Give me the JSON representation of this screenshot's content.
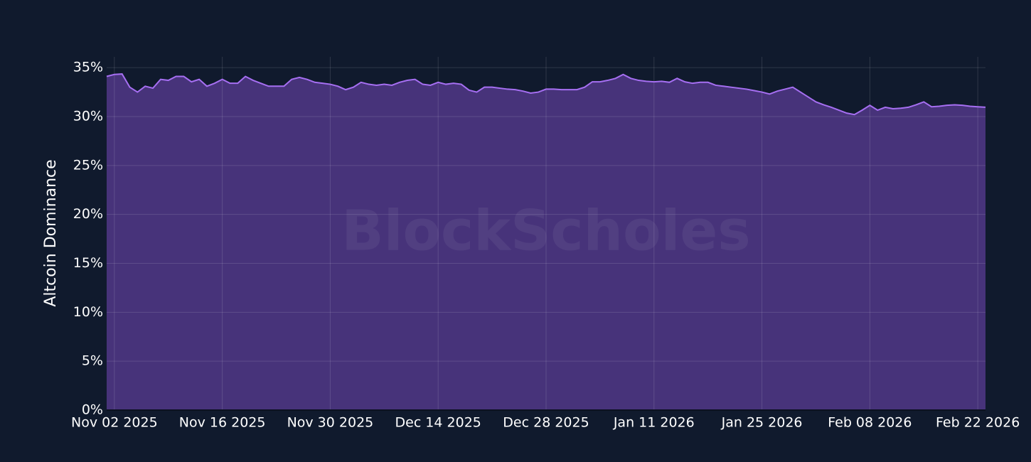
{
  "chart_data": {
    "type": "area",
    "y_label": "Altcoin Dominance",
    "watermark": "BlockScholes",
    "line_color": "#a66ff2",
    "fill_color": "#47337a",
    "grid": true,
    "xlim": [
      "2025-11-01",
      "2026-02-23"
    ],
    "ylim": [
      0,
      36.1
    ],
    "xticks": [
      {
        "value": "2025-11-02",
        "label": "Nov 02 2025"
      },
      {
        "value": "2025-11-16",
        "label": "Nov 16 2025"
      },
      {
        "value": "2025-11-30",
        "label": "Nov 30 2025"
      },
      {
        "value": "2025-12-14",
        "label": "Dec 14 2025"
      },
      {
        "value": "2025-12-28",
        "label": "Dec 28 2025"
      },
      {
        "value": "2026-01-11",
        "label": "Jan 11 2026"
      },
      {
        "value": "2026-01-25",
        "label": "Jan 25 2026"
      },
      {
        "value": "2026-02-08",
        "label": "Feb 08 2026"
      },
      {
        "value": "2026-02-22",
        "label": "Feb 22 2026"
      }
    ],
    "yticks": [
      {
        "value": 0,
        "label": "0%"
      },
      {
        "value": 5,
        "label": "5%"
      },
      {
        "value": 10,
        "label": "10%"
      },
      {
        "value": 15,
        "label": "15%"
      },
      {
        "value": 20,
        "label": "20%"
      },
      {
        "value": 25,
        "label": "25%"
      },
      {
        "value": 30,
        "label": "30%"
      },
      {
        "value": 35,
        "label": "35%"
      }
    ],
    "x": [
      "2025-11-01",
      "2025-11-02",
      "2025-11-03",
      "2025-11-04",
      "2025-11-05",
      "2025-11-06",
      "2025-11-07",
      "2025-11-08",
      "2025-11-09",
      "2025-11-10",
      "2025-11-11",
      "2025-11-12",
      "2025-11-13",
      "2025-11-14",
      "2025-11-15",
      "2025-11-16",
      "2025-11-17",
      "2025-11-18",
      "2025-11-19",
      "2025-11-20",
      "2025-11-21",
      "2025-11-22",
      "2025-11-23",
      "2025-11-24",
      "2025-11-25",
      "2025-11-26",
      "2025-11-27",
      "2025-11-28",
      "2025-11-29",
      "2025-11-30",
      "2025-12-01",
      "2025-12-02",
      "2025-12-03",
      "2025-12-04",
      "2025-12-05",
      "2025-12-06",
      "2025-12-07",
      "2025-12-08",
      "2025-12-09",
      "2025-12-10",
      "2025-12-11",
      "2025-12-12",
      "2025-12-13",
      "2025-12-14",
      "2025-12-15",
      "2025-12-16",
      "2025-12-17",
      "2025-12-18",
      "2025-12-19",
      "2025-12-20",
      "2025-12-21",
      "2025-12-22",
      "2025-12-23",
      "2025-12-24",
      "2025-12-25",
      "2025-12-26",
      "2025-12-27",
      "2025-12-28",
      "2025-12-29",
      "2025-12-30",
      "2025-12-31",
      "2026-01-01",
      "2026-01-02",
      "2026-01-03",
      "2026-01-04",
      "2026-01-05",
      "2026-01-06",
      "2026-01-07",
      "2026-01-08",
      "2026-01-09",
      "2026-01-10",
      "2026-01-11",
      "2026-01-12",
      "2026-01-13",
      "2026-01-14",
      "2026-01-15",
      "2026-01-16",
      "2026-01-17",
      "2026-01-18",
      "2026-01-19",
      "2026-01-20",
      "2026-01-21",
      "2026-01-22",
      "2026-01-23",
      "2026-01-24",
      "2026-01-25",
      "2026-01-26",
      "2026-01-27",
      "2026-01-28",
      "2026-01-29",
      "2026-01-30",
      "2026-01-31",
      "2026-02-01",
      "2026-02-02",
      "2026-02-03",
      "2026-02-04",
      "2026-02-05",
      "2026-02-06",
      "2026-02-07",
      "2026-02-08",
      "2026-02-09",
      "2026-02-10",
      "2026-02-11",
      "2026-02-12",
      "2026-02-13",
      "2026-02-14",
      "2026-02-15",
      "2026-02-16",
      "2026-02-17",
      "2026-02-18",
      "2026-02-19",
      "2026-02-20",
      "2026-02-21",
      "2026-02-22",
      "2026-02-23"
    ],
    "values": [
      34.1,
      34.3,
      34.35,
      33.0,
      32.5,
      33.1,
      32.9,
      33.8,
      33.7,
      34.1,
      34.1,
      33.55,
      33.8,
      33.1,
      33.4,
      33.8,
      33.4,
      33.4,
      34.1,
      33.7,
      33.4,
      33.1,
      33.1,
      33.1,
      33.8,
      34.0,
      33.8,
      33.5,
      33.4,
      33.3,
      33.1,
      32.75,
      33.0,
      33.5,
      33.3,
      33.2,
      33.3,
      33.2,
      33.5,
      33.7,
      33.8,
      33.3,
      33.2,
      33.5,
      33.3,
      33.4,
      33.3,
      32.7,
      32.5,
      33.0,
      33.0,
      32.9,
      32.8,
      32.75,
      32.6,
      32.4,
      32.5,
      32.8,
      32.8,
      32.75,
      32.75,
      32.75,
      33.0,
      33.55,
      33.55,
      33.7,
      33.9,
      34.3,
      33.9,
      33.7,
      33.6,
      33.55,
      33.6,
      33.5,
      33.9,
      33.55,
      33.4,
      33.5,
      33.5,
      33.2,
      33.1,
      33.0,
      32.9,
      32.8,
      32.65,
      32.5,
      32.3,
      32.6,
      32.8,
      33.0,
      32.5,
      32.0,
      31.5,
      31.2,
      30.95,
      30.65,
      30.35,
      30.2,
      30.65,
      31.15,
      30.65,
      30.95,
      30.8,
      30.85,
      30.95,
      31.2,
      31.5,
      31.0,
      31.05,
      31.15,
      31.2,
      31.15,
      31.05,
      31.0,
      30.95
    ]
  }
}
